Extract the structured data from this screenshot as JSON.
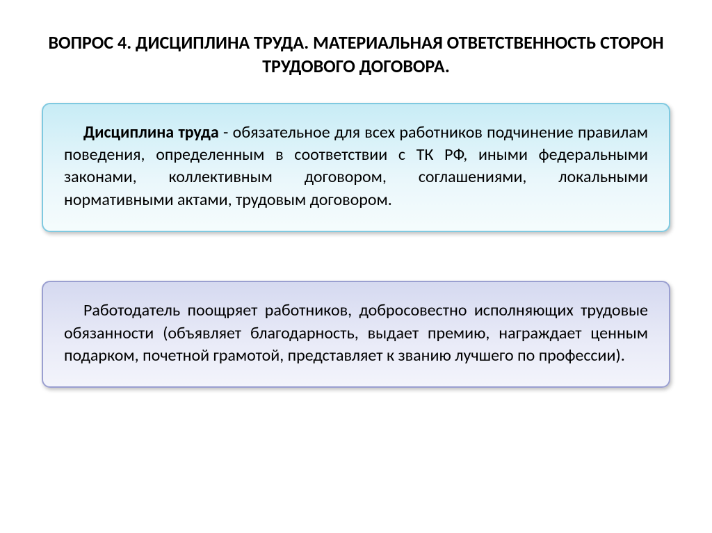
{
  "title": "ВОПРОС 4. ДИСЦИПЛИНА ТРУДА. МАТЕРИАЛЬНАЯ ОТВЕТСТВЕННОСТЬ СТОРОН ТРУДОВОГО ДОГОВОРА.",
  "box1": {
    "term": "Дисциплина труда",
    "text": " - обязательное для всех работников подчинение правилам поведения, определенным в соответствии с ТК РФ, иными федеральными законами, коллективным договором, соглашениями, локальными нормативными актами, трудовым договором.",
    "background_gradient": [
      "#c8ecf6",
      "#eaf7fb",
      "#f5fcfd"
    ],
    "border_color": "#7fc9e0",
    "font_size": 24
  },
  "box2": {
    "text": "Работодатель поощряет работников, добросовестно исполняющих трудовые обязанности (объявляет благодарность, выдает премию, награждает ценным подарком, почетной грамотой, представляет к званию лучшего по профессии).",
    "background_gradient": [
      "#d5d9f0",
      "#e8eaf7",
      "#f3f4fb"
    ],
    "border_color": "#9a9fd0",
    "font_size": 24
  },
  "styling": {
    "title_font_size": 26,
    "title_color": "#000000",
    "body_text_color": "#000000",
    "box_border_radius": 12,
    "box_shadow": "2px 3px 6px rgba(0,0,0,0.25)",
    "slide_background": "#ffffff",
    "slide_width": 1024,
    "slide_height": 767
  }
}
